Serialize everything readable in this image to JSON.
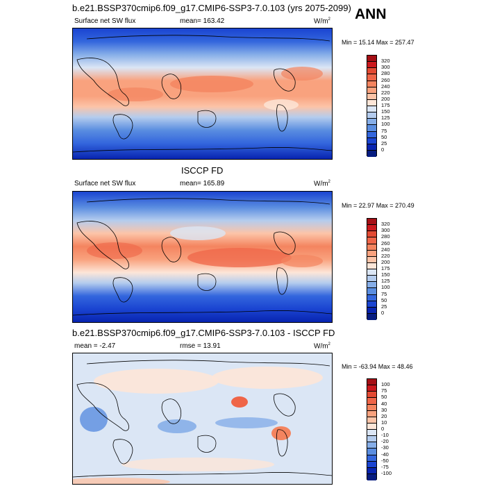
{
  "header": {
    "season": "ANN"
  },
  "panels": [
    {
      "title": "b.e21.BSSP370cmip6.f09_g17.CMIP6-SSP3-7.0.103 (yrs 2075-2099)",
      "left_label": "Surface net SW flux",
      "center_label": "mean= 163.42",
      "units": "W/m",
      "units_sup": "2",
      "min_max": "Min =  15.14 Max = 257.47",
      "colorbar_ticks": [
        "320",
        "300",
        "280",
        "260",
        "240",
        "220",
        "200",
        "175",
        "150",
        "125",
        "100",
        "75",
        "50",
        "25",
        "0"
      ],
      "colorbar_colors": [
        "#a50f15",
        "#cb181d",
        "#e34a33",
        "#ef6548",
        "#f4845f",
        "#f9a27e",
        "#fcc4a8",
        "#fde6d8",
        "#dbe6f5",
        "#b4ccee",
        "#86aee8",
        "#5a8de0",
        "#3366dd",
        "#1a44d1",
        "#0824b0",
        "#061c80"
      ]
    },
    {
      "title": "ISCCP FD",
      "left_label": "Surface net SW flux",
      "center_label": "mean= 165.89",
      "units": "W/m",
      "units_sup": "2",
      "min_max": "Min =  22.97 Max = 270.49",
      "colorbar_ticks": [
        "320",
        "300",
        "280",
        "260",
        "240",
        "220",
        "200",
        "175",
        "150",
        "125",
        "100",
        "75",
        "50",
        "25",
        "0"
      ],
      "colorbar_colors": [
        "#a50f15",
        "#cb181d",
        "#e34a33",
        "#ef6548",
        "#f4845f",
        "#f9a27e",
        "#fcc4a8",
        "#fde6d8",
        "#dbe6f5",
        "#b4ccee",
        "#86aee8",
        "#5a8de0",
        "#3366dd",
        "#1a44d1",
        "#0824b0",
        "#061c80"
      ]
    },
    {
      "title": "b.e21.BSSP370cmip6.f09_g17.CMIP6-SSP3-7.0.103 - ISCCP FD",
      "left_label": "mean =  -2.47",
      "center_label": "rmse =  13.91",
      "units": "W/m",
      "units_sup": "2",
      "min_max": "Min = -63.94 Max =  48.46",
      "colorbar_ticks": [
        "100",
        "75",
        "50",
        "40",
        "30",
        "20",
        "10",
        "0",
        "-10",
        "-20",
        "-30",
        "-40",
        "-50",
        "-75",
        "-100"
      ],
      "colorbar_colors": [
        "#a50f15",
        "#cb181d",
        "#e34a33",
        "#ef6548",
        "#f4845f",
        "#f9a27e",
        "#fcc4a8",
        "#fde6d8",
        "#dbe6f5",
        "#b4ccee",
        "#86aee8",
        "#5a8de0",
        "#3366dd",
        "#1a44d1",
        "#0824b0",
        "#061c80"
      ]
    }
  ]
}
